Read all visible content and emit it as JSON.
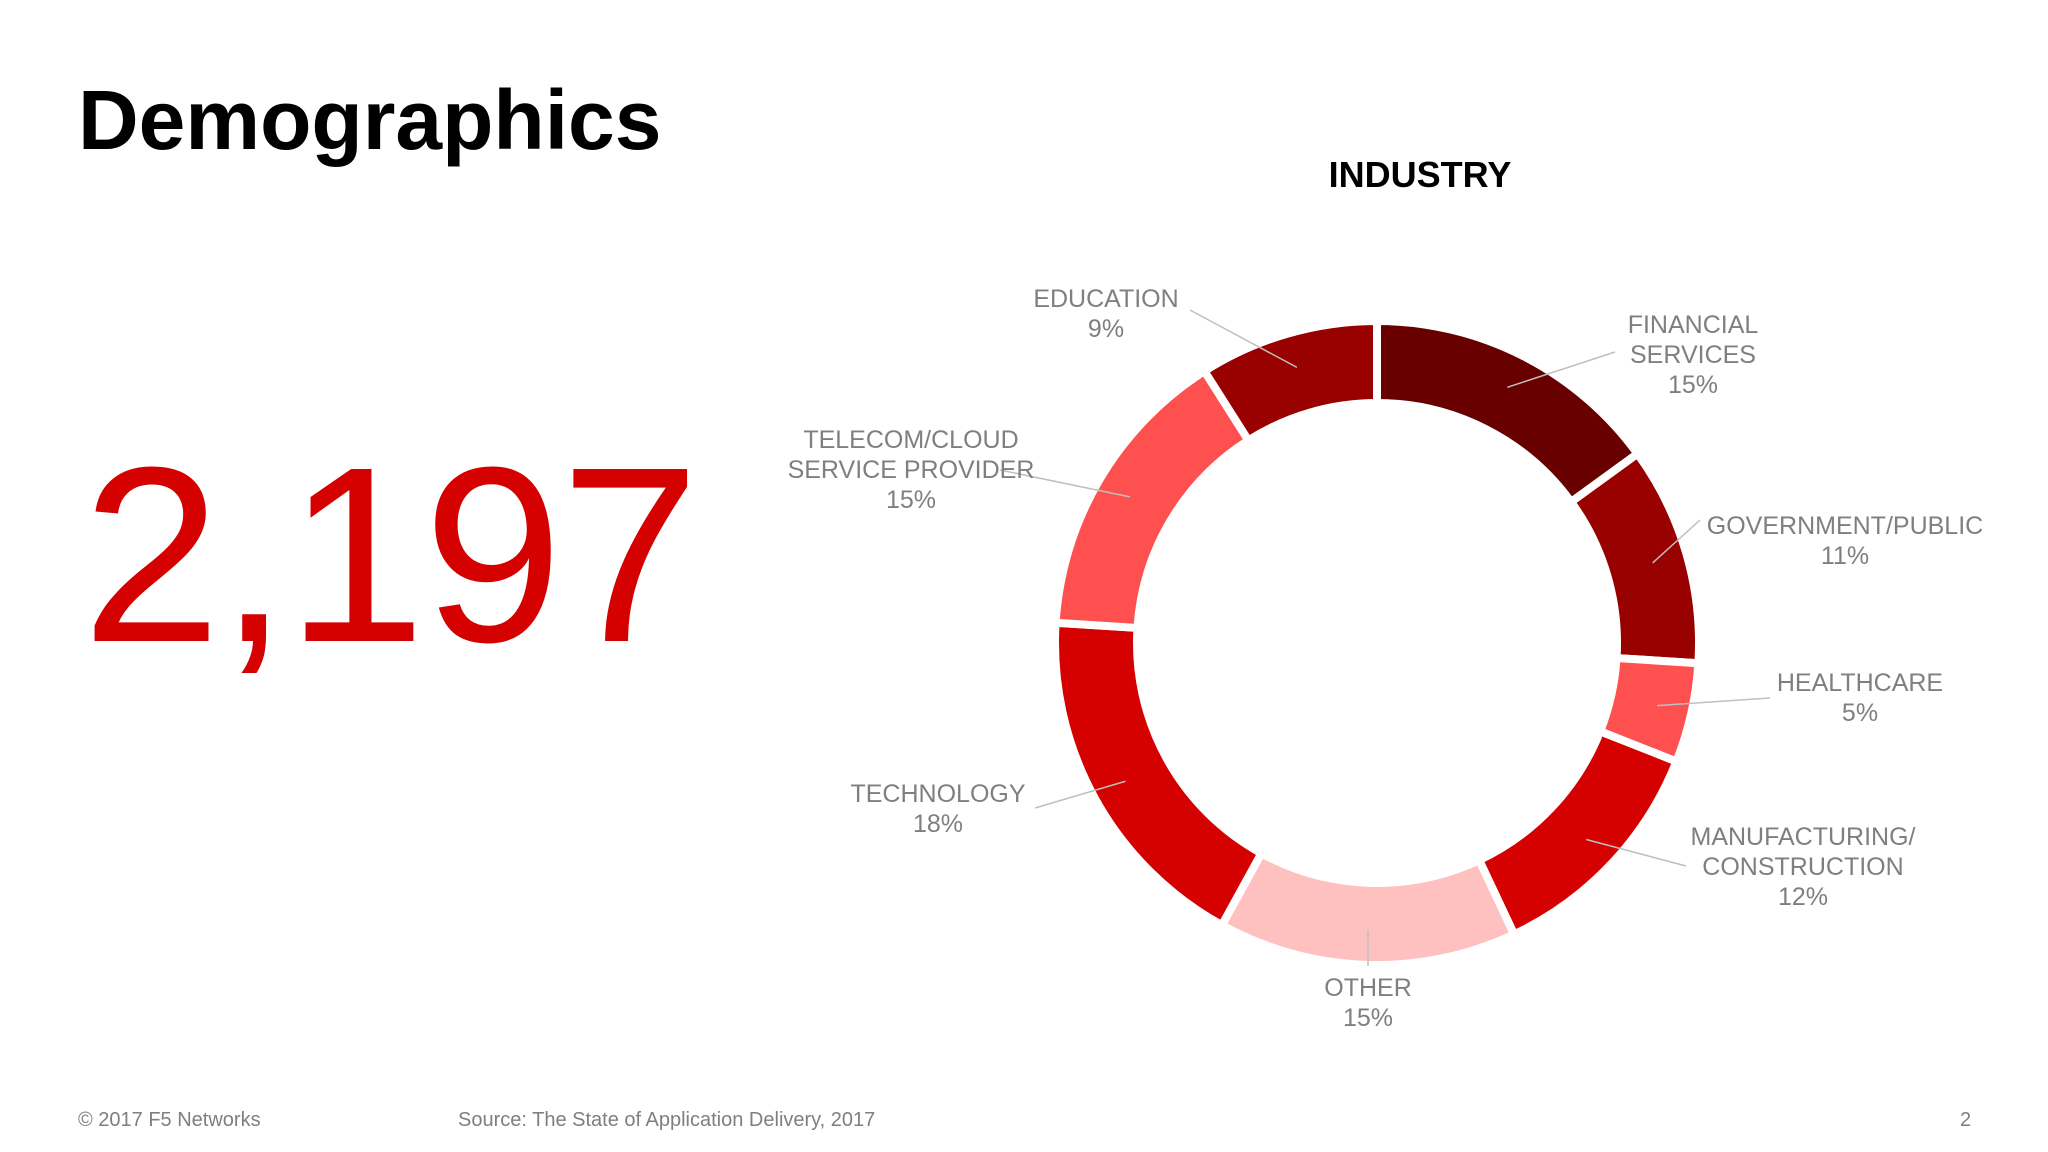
{
  "slide": {
    "title": "Demographics",
    "big_number": "2,197"
  },
  "footer": {
    "copyright": "© 2017 F5 Networks",
    "source": "Source: The State of Application Delivery, 2017",
    "page_number": "2"
  },
  "chart_data": {
    "type": "pie",
    "style": "donut",
    "title": "INDUSTRY",
    "legend": "none",
    "slices": [
      {
        "label": "FINANCIAL SERVICES",
        "label_lines": [
          "FINANCIAL",
          "SERVICES"
        ],
        "value": 15,
        "value_label": "15%",
        "color": "#680000"
      },
      {
        "label": "GOVERNMENT/PUBLIC",
        "label_lines": [
          "GOVERNMENT/PUBLIC"
        ],
        "value": 11,
        "value_label": "11%",
        "color": "#990000"
      },
      {
        "label": "HEALTHCARE",
        "label_lines": [
          "HEALTHCARE"
        ],
        "value": 5,
        "value_label": "5%",
        "color": "#ff5050"
      },
      {
        "label": "MANUFACTURING/ CONSTRUCTION",
        "label_lines": [
          "MANUFACTURING/",
          "CONSTRUCTION"
        ],
        "value": 12,
        "value_label": "12%",
        "color": "#d50000"
      },
      {
        "label": "OTHER",
        "label_lines": [
          "OTHER"
        ],
        "value": 15,
        "value_label": "15%",
        "color": "#ffc0c0"
      },
      {
        "label": "TECHNOLOGY",
        "label_lines": [
          "TECHNOLOGY"
        ],
        "value": 18,
        "value_label": "18%",
        "color": "#d50000"
      },
      {
        "label": "TELECOM/CLOUD SERVICE PROVIDER",
        "label_lines": [
          "TELECOM/CLOUD",
          "SERVICE PROVIDER"
        ],
        "value": 15,
        "value_label": "15%",
        "color": "#ff5050"
      },
      {
        "label": "EDUCATION",
        "label_lines": [
          "EDUCATION"
        ],
        "value": 9,
        "value_label": "9%",
        "color": "#990000"
      }
    ]
  }
}
